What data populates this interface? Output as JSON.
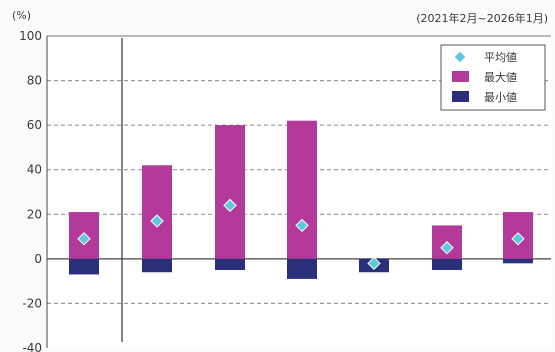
{
  "chart_data": {
    "type": "bar",
    "unit_label": "(%)",
    "period_label": "(2021年2月~2026年1月)",
    "ylim": [
      -40,
      100
    ],
    "yticks": [
      100,
      80,
      60,
      40,
      20,
      0,
      -20,
      -40
    ],
    "grid": true,
    "legend_position": "top-right",
    "categories": [
      "",
      "",
      "",
      "",
      "",
      "",
      ""
    ],
    "series": [
      {
        "name": "平均値",
        "kind": "marker",
        "color": "#5ec8dc",
        "values": [
          9,
          17,
          24,
          15,
          -2,
          5,
          9
        ]
      },
      {
        "name": "最大値",
        "kind": "bar",
        "color": "#b3399b",
        "values": [
          21,
          42,
          60,
          62,
          -1,
          15,
          21
        ]
      },
      {
        "name": "最小値",
        "kind": "bar",
        "color": "#2a2f7a",
        "values": [
          -7,
          -6,
          -5,
          -9,
          -6,
          -5,
          -2
        ]
      }
    ]
  }
}
